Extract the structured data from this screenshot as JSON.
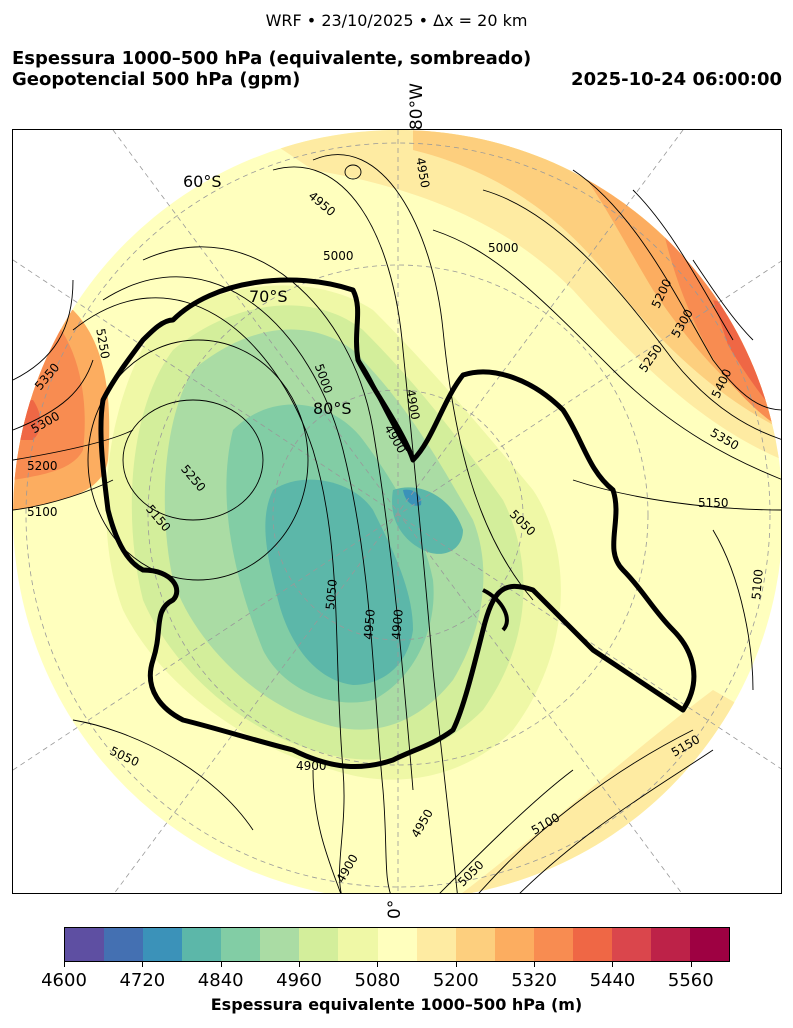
{
  "header": {
    "suptitle": "WRF • 23/10/2025 • Δx = 20 km",
    "title_line1": "Espessura 1000–500 hPa (equivalente, sombreado)",
    "title_line2": "Geopotencial 500 hPa (gpm)",
    "valid_time": "2025-10-24 06:00:00"
  },
  "map": {
    "projection": "south-polar-stereographic",
    "lon_label_top": "180°W",
    "lon_label_bottom": "0°",
    "lat_labels": [
      "60°S",
      "70°S",
      "80°S"
    ],
    "contour_labels": [
      "4950",
      "5000",
      "4950",
      "4900",
      "4900",
      "5250",
      "5350",
      "5300",
      "5200",
      "5100",
      "5250",
      "5150",
      "5050",
      "4950",
      "4900",
      "5000",
      "5200",
      "5300",
      "5250",
      "5400",
      "5350",
      "5150",
      "5100",
      "5150",
      "5100",
      "5050",
      "4950",
      "5050",
      "4900",
      "4900",
      "5050",
      "5000"
    ],
    "coastline_color": "#000000",
    "gridline_style": "dashed-gray"
  },
  "colorbar": {
    "label": "Espessura equivalente 1000–500 hPa (m)",
    "min": 4600,
    "max": 5620,
    "tick_labels": [
      "4600",
      "4720",
      "4840",
      "4960",
      "5080",
      "5200",
      "5320",
      "5440",
      "5560"
    ],
    "colors": [
      "#5e4fa2",
      "#4470b2",
      "#3b92b9",
      "#5cb7a9",
      "#82cda5",
      "#aadca4",
      "#d3ee9b",
      "#eff8a6",
      "#ffffbe",
      "#feeba2",
      "#fdcf7e",
      "#fcad60",
      "#f88c51",
      "#ef6745",
      "#da464c",
      "#bd2248",
      "#9e0142"
    ]
  }
}
